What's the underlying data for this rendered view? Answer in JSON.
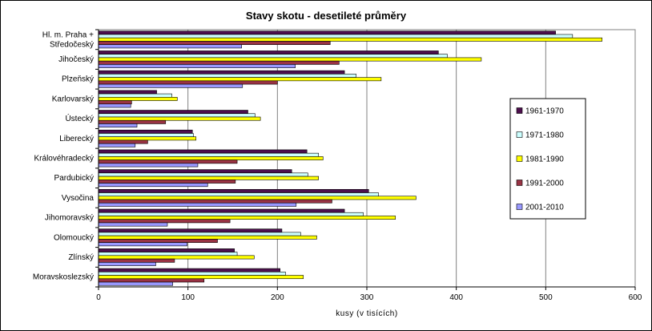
{
  "chart_data": {
    "type": "bar",
    "orientation": "horizontal",
    "title": "Stavy skotu - desetileté průměry",
    "xlabel": "kusy (v tisících)",
    "ylabel": "",
    "xlim": [
      0,
      600
    ],
    "xticks": [
      0,
      100,
      200,
      300,
      400,
      500,
      600
    ],
    "grid": true,
    "legend_position": "right",
    "categories": [
      "Hl. m. Praha +\nStředočeský",
      "Jihočeský",
      "Plzeňský",
      "Karlovarský",
      "Ústecký",
      "Liberecký",
      "Královéhradecký",
      "Pardubický",
      "Vysočina",
      "Jihomoravský",
      "Olomoucký",
      "Zlínský",
      "Moravskoslezský"
    ],
    "series": [
      {
        "name": "1961-1970",
        "color": "#4d0f4d",
        "values": [
          511,
          380,
          275,
          65,
          167,
          105,
          233,
          216,
          302,
          275,
          205,
          152,
          203
        ]
      },
      {
        "name": "1971-1980",
        "color": "#ccffff",
        "values": [
          530,
          390,
          288,
          82,
          175,
          106,
          246,
          234,
          313,
          296,
          226,
          155,
          209
        ]
      },
      {
        "name": "1981-1990",
        "color": "#ffff00",
        "values": [
          563,
          428,
          316,
          88,
          181,
          109,
          251,
          246,
          355,
          332,
          244,
          174,
          229
        ]
      },
      {
        "name": "1991-2000",
        "color": "#993344",
        "values": [
          259,
          269,
          200,
          37,
          75,
          55,
          155,
          153,
          261,
          147,
          133,
          85,
          118
        ]
      },
      {
        "name": "2001-2010",
        "color": "#9999ff",
        "values": [
          160,
          220,
          161,
          36,
          43,
          41,
          111,
          122,
          221,
          77,
          99,
          64,
          83
        ]
      }
    ]
  }
}
